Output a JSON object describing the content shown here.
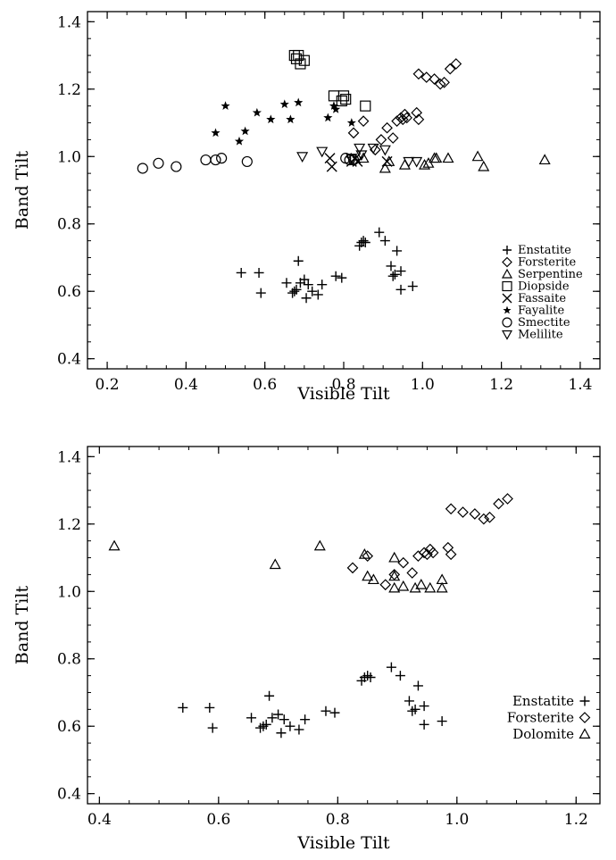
{
  "chart_data": [
    {
      "type": "scatter",
      "xlabel": "Visible Tilt",
      "ylabel": "Band Tilt",
      "xlim": [
        0.15,
        1.45
      ],
      "ylim": [
        0.37,
        1.43
      ],
      "xticks": [
        "0.2",
        "0.4",
        "0.6",
        "0.8",
        "1.0",
        "1.2",
        "1.4"
      ],
      "yticks": [
        "0.4",
        "0.6",
        "0.8",
        "1.0",
        "1.2",
        "1.4"
      ],
      "legend_position": "bottom-right",
      "series": [
        {
          "name": "Enstatite",
          "marker": "plus",
          "points": [
            [
              0.54,
              0.655
            ],
            [
              0.585,
              0.655
            ],
            [
              0.59,
              0.595
            ],
            [
              0.655,
              0.625
            ],
            [
              0.67,
              0.595
            ],
            [
              0.675,
              0.6
            ],
            [
              0.68,
              0.605
            ],
            [
              0.685,
              0.69
            ],
            [
              0.69,
              0.625
            ],
            [
              0.7,
              0.635
            ],
            [
              0.705,
              0.58
            ],
            [
              0.71,
              0.62
            ],
            [
              0.72,
              0.6
            ],
            [
              0.735,
              0.59
            ],
            [
              0.745,
              0.62
            ],
            [
              0.78,
              0.645
            ],
            [
              0.795,
              0.64
            ],
            [
              0.84,
              0.735
            ],
            [
              0.845,
              0.745
            ],
            [
              0.85,
              0.75
            ],
            [
              0.855,
              0.745
            ],
            [
              0.89,
              0.775
            ],
            [
              0.905,
              0.75
            ],
            [
              0.92,
              0.675
            ],
            [
              0.925,
              0.645
            ],
            [
              0.93,
              0.65
            ],
            [
              0.935,
              0.72
            ],
            [
              0.945,
              0.66
            ],
            [
              0.945,
              0.605
            ],
            [
              0.975,
              0.615
            ]
          ]
        },
        {
          "name": "Forsterite",
          "marker": "diamond",
          "points": [
            [
              0.825,
              1.07
            ],
            [
              0.85,
              1.105
            ],
            [
              0.88,
              1.02
            ],
            [
              0.895,
              1.05
            ],
            [
              0.91,
              1.085
            ],
            [
              0.925,
              1.055
            ],
            [
              0.935,
              1.105
            ],
            [
              0.945,
              1.115
            ],
            [
              0.95,
              1.11
            ],
            [
              0.955,
              1.125
            ],
            [
              0.96,
              1.115
            ],
            [
              0.985,
              1.13
            ],
            [
              0.99,
              1.11
            ],
            [
              0.99,
              1.245
            ],
            [
              1.01,
              1.235
            ],
            [
              1.03,
              1.23
            ],
            [
              1.045,
              1.215
            ],
            [
              1.055,
              1.22
            ],
            [
              1.07,
              1.26
            ],
            [
              1.085,
              1.275
            ]
          ]
        },
        {
          "name": "Serpentine",
          "marker": "triangle",
          "points": [
            [
              0.85,
              0.995
            ],
            [
              0.905,
              0.965
            ],
            [
              0.915,
              0.985
            ],
            [
              0.955,
              0.975
            ],
            [
              1.005,
              0.975
            ],
            [
              1.015,
              0.98
            ],
            [
              1.03,
              0.995
            ],
            [
              1.035,
              0.995
            ],
            [
              1.065,
              0.995
            ],
            [
              1.14,
              1.0
            ],
            [
              1.155,
              0.97
            ],
            [
              1.31,
              0.99
            ]
          ]
        },
        {
          "name": "Diopside",
          "marker": "square",
          "points": [
            [
              0.675,
              1.3
            ],
            [
              0.68,
              1.29
            ],
            [
              0.685,
              1.3
            ],
            [
              0.69,
              1.275
            ],
            [
              0.7,
              1.285
            ],
            [
              0.775,
              1.18
            ],
            [
              0.795,
              1.165
            ],
            [
              0.8,
              1.18
            ],
            [
              0.805,
              1.17
            ],
            [
              0.855,
              1.15
            ]
          ]
        },
        {
          "name": "Fassaite",
          "marker": "x",
          "points": [
            [
              0.765,
              0.995
            ],
            [
              0.77,
              0.97
            ],
            [
              0.82,
              0.985
            ],
            [
              0.83,
              0.995
            ],
            [
              0.835,
              0.985
            ],
            [
              0.91,
              0.985
            ]
          ]
        },
        {
          "name": "Fayalite",
          "marker": "star",
          "points": [
            [
              0.475,
              1.07
            ],
            [
              0.5,
              1.15
            ],
            [
              0.535,
              1.045
            ],
            [
              0.55,
              1.075
            ],
            [
              0.58,
              1.13
            ],
            [
              0.615,
              1.11
            ],
            [
              0.65,
              1.155
            ],
            [
              0.665,
              1.11
            ],
            [
              0.685,
              1.16
            ],
            [
              0.76,
              1.115
            ],
            [
              0.775,
              1.15
            ],
            [
              0.78,
              1.14
            ],
            [
              0.82,
              1.1
            ]
          ]
        },
        {
          "name": "Smectite",
          "marker": "circle",
          "points": [
            [
              0.29,
              0.965
            ],
            [
              0.33,
              0.98
            ],
            [
              0.375,
              0.97
            ],
            [
              0.45,
              0.99
            ],
            [
              0.475,
              0.99
            ],
            [
              0.49,
              0.995
            ],
            [
              0.555,
              0.985
            ],
            [
              0.805,
              0.995
            ],
            [
              0.815,
              0.99
            ],
            [
              0.825,
              0.99
            ]
          ]
        },
        {
          "name": "Melilite",
          "marker": "tridown",
          "points": [
            [
              0.695,
              1.0
            ],
            [
              0.745,
              1.015
            ],
            [
              0.82,
              0.995
            ],
            [
              0.84,
              1.025
            ],
            [
              0.845,
              1.005
            ],
            [
              0.875,
              1.025
            ],
            [
              0.905,
              1.02
            ],
            [
              0.965,
              0.985
            ],
            [
              0.985,
              0.985
            ]
          ]
        }
      ]
    },
    {
      "type": "scatter",
      "xlabel": "Visible Tilt",
      "ylabel": "Band Tilt",
      "xlim": [
        0.38,
        1.24
      ],
      "ylim": [
        0.37,
        1.43
      ],
      "xticks": [
        "0.4",
        "0.6",
        "0.8",
        "1.0",
        "1.2"
      ],
      "yticks": [
        "0.4",
        "0.6",
        "0.8",
        "1.0",
        "1.2",
        "1.4"
      ],
      "legend_position": "bottom-right",
      "series": [
        {
          "name": "Enstatite",
          "marker": "plus",
          "points": [
            [
              0.54,
              0.655
            ],
            [
              0.585,
              0.655
            ],
            [
              0.59,
              0.595
            ],
            [
              0.655,
              0.625
            ],
            [
              0.67,
              0.595
            ],
            [
              0.675,
              0.6
            ],
            [
              0.68,
              0.605
            ],
            [
              0.685,
              0.69
            ],
            [
              0.69,
              0.625
            ],
            [
              0.7,
              0.635
            ],
            [
              0.705,
              0.58
            ],
            [
              0.71,
              0.62
            ],
            [
              0.72,
              0.6
            ],
            [
              0.735,
              0.59
            ],
            [
              0.745,
              0.62
            ],
            [
              0.78,
              0.645
            ],
            [
              0.795,
              0.64
            ],
            [
              0.84,
              0.735
            ],
            [
              0.845,
              0.745
            ],
            [
              0.85,
              0.75
            ],
            [
              0.855,
              0.745
            ],
            [
              0.89,
              0.775
            ],
            [
              0.905,
              0.75
            ],
            [
              0.92,
              0.675
            ],
            [
              0.925,
              0.645
            ],
            [
              0.93,
              0.65
            ],
            [
              0.935,
              0.72
            ],
            [
              0.945,
              0.66
            ],
            [
              0.945,
              0.605
            ],
            [
              0.975,
              0.615
            ]
          ]
        },
        {
          "name": "Forsterite",
          "marker": "diamond",
          "points": [
            [
              0.825,
              1.07
            ],
            [
              0.85,
              1.105
            ],
            [
              0.88,
              1.02
            ],
            [
              0.895,
              1.05
            ],
            [
              0.91,
              1.085
            ],
            [
              0.925,
              1.055
            ],
            [
              0.935,
              1.105
            ],
            [
              0.945,
              1.115
            ],
            [
              0.95,
              1.11
            ],
            [
              0.955,
              1.125
            ],
            [
              0.96,
              1.115
            ],
            [
              0.985,
              1.13
            ],
            [
              0.99,
              1.11
            ],
            [
              0.99,
              1.245
            ],
            [
              1.01,
              1.235
            ],
            [
              1.03,
              1.23
            ],
            [
              1.045,
              1.215
            ],
            [
              1.055,
              1.22
            ],
            [
              1.07,
              1.26
            ],
            [
              1.085,
              1.275
            ]
          ]
        },
        {
          "name": "Dolomite",
          "marker": "triangle",
          "points": [
            [
              0.425,
              1.135
            ],
            [
              0.695,
              1.08
            ],
            [
              0.77,
              1.135
            ],
            [
              0.845,
              1.11
            ],
            [
              0.85,
              1.045
            ],
            [
              0.86,
              1.035
            ],
            [
              0.895,
              1.01
            ],
            [
              0.895,
              1.1
            ],
            [
              0.895,
              1.045
            ],
            [
              0.91,
              1.015
            ],
            [
              0.93,
              1.01
            ],
            [
              0.94,
              1.02
            ],
            [
              0.955,
              1.01
            ],
            [
              0.975,
              1.01
            ],
            [
              0.975,
              1.035
            ]
          ]
        }
      ]
    }
  ]
}
